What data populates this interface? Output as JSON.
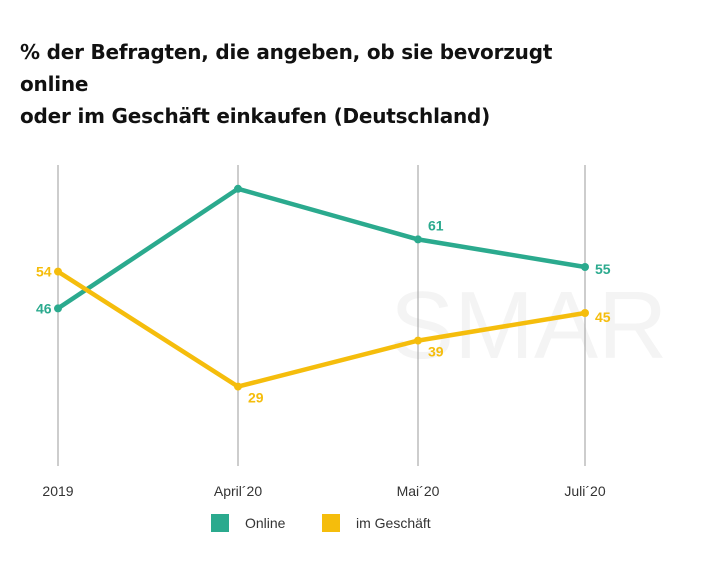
{
  "title_line1": "% der Befragten, die angeben, ob sie bevorzugt online",
  "title_line2": "oder im Geschäft einkaufen (Deutschland)",
  "watermark": "SMAR",
  "colors": {
    "online": "#2BAA8E",
    "store": "#F5BD0C",
    "grid": "#9b9b9b"
  },
  "chart_data": {
    "type": "line",
    "title": "% der Befragten, die angeben, ob sie bevorzugt online oder im Geschäft einkaufen (Deutschland)",
    "categories": [
      "2019",
      "April´20",
      "Mai´20",
      "Juli´20"
    ],
    "series": [
      {
        "name": "Online",
        "values": [
          46,
          72,
          61,
          55
        ],
        "labels": [
          "46",
          "",
          "61",
          "55"
        ]
      },
      {
        "name": "im Geschäft",
        "values": [
          54,
          29,
          39,
          45
        ],
        "labels": [
          "54",
          "29",
          "39",
          "45"
        ]
      }
    ],
    "xlabel": "",
    "ylabel": "",
    "ylim": [
      0,
      80
    ],
    "grid": "vertical lines at categories",
    "legend_position": "bottom"
  }
}
